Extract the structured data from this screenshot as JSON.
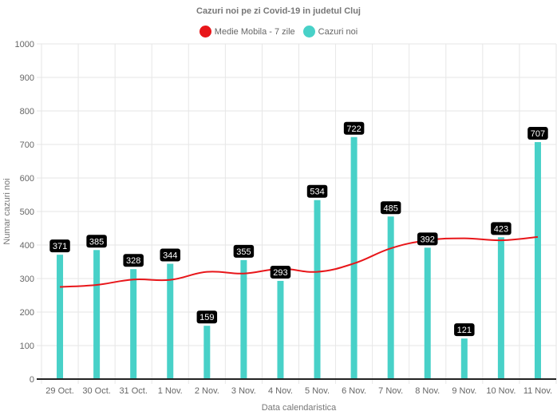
{
  "chart_data": {
    "type": "bar",
    "title": "Cazuri noi pe zi Covid-19 in judetul Cluj",
    "xlabel": "Data calendaristica",
    "ylabel": "Numar cazuri noi",
    "ylim": [
      0,
      1000
    ],
    "yticks": [
      0,
      100,
      200,
      300,
      400,
      500,
      600,
      700,
      800,
      900,
      1000
    ],
    "grid": true,
    "legend_position": "top",
    "categories": [
      "29 Oct.",
      "30 Oct.",
      "31 Oct.",
      "1 Nov.",
      "2 Nov.",
      "3 Nov.",
      "4 Nov.",
      "5 Nov.",
      "6 Nov.",
      "7 Nov.",
      "8 Nov.",
      "9 Nov.",
      "10 Nov.",
      "11 Nov."
    ],
    "series": [
      {
        "name": "Medie Mobila - 7 zile",
        "type": "line",
        "color": "#e8161a",
        "values": [
          275,
          281,
          297,
          296,
          320,
          315,
          329,
          320,
          345,
          390,
          414,
          420,
          414,
          424
        ]
      },
      {
        "name": "Cazuri noi",
        "type": "bar",
        "color": "#48d1c8",
        "values": [
          371,
          385,
          328,
          344,
          159,
          355,
          293,
          534,
          722,
          485,
          392,
          121,
          423,
          707
        ],
        "data_labels": [
          "371",
          "385",
          "328",
          "344",
          "159",
          "355",
          "293",
          "534",
          "722",
          "485",
          "392",
          "121",
          "423",
          "707"
        ]
      }
    ]
  }
}
